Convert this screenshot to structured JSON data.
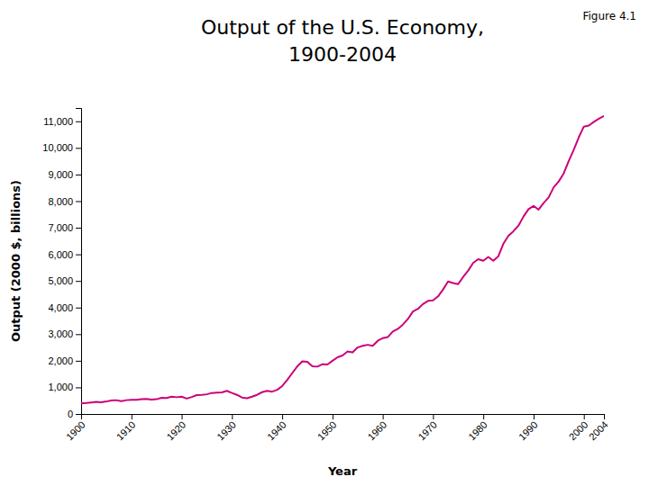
{
  "chart_data": {
    "type": "line",
    "title": "Output of the U.S. Economy,",
    "subtitle": "1900-2004",
    "annotations": [
      "Figure 4.1"
    ],
    "x_label": "Year",
    "y_label": "Output (2000 $, billions)",
    "color": "#CC007A",
    "grid": false,
    "x": [
      1900,
      1901,
      1902,
      1903,
      1904,
      1905,
      1906,
      1907,
      1908,
      1909,
      1910,
      1911,
      1912,
      1913,
      1914,
      1915,
      1916,
      1917,
      1918,
      1919,
      1920,
      1921,
      1922,
      1923,
      1924,
      1925,
      1926,
      1927,
      1928,
      1929,
      1930,
      1931,
      1932,
      1933,
      1934,
      1935,
      1936,
      1937,
      1938,
      1939,
      1940,
      1941,
      1942,
      1943,
      1944,
      1945,
      1946,
      1947,
      1948,
      1949,
      1950,
      1951,
      1952,
      1953,
      1954,
      1955,
      1956,
      1957,
      1958,
      1959,
      1960,
      1961,
      1962,
      1963,
      1964,
      1965,
      1966,
      1967,
      1968,
      1969,
      1970,
      1971,
      1972,
      1973,
      1974,
      1975,
      1976,
      1977,
      1978,
      1979,
      1980,
      1981,
      1982,
      1983,
      1984,
      1985,
      1986,
      1987,
      1988,
      1989,
      1990,
      1991,
      1992,
      1993,
      1994,
      1995,
      1996,
      1997,
      1998,
      1999,
      2000,
      2001,
      2002,
      2003,
      2004
    ],
    "values": [
      400,
      415,
      435,
      455,
      440,
      470,
      510,
      520,
      480,
      520,
      530,
      535,
      555,
      570,
      540,
      555,
      610,
      600,
      650,
      630,
      650,
      580,
      640,
      710,
      720,
      740,
      790,
      800,
      810,
      870,
      790,
      720,
      620,
      590,
      650,
      720,
      820,
      870,
      840,
      910,
      1050,
      1280,
      1540,
      1790,
      1980,
      1960,
      1790,
      1780,
      1870,
      1860,
      2000,
      2130,
      2200,
      2350,
      2320,
      2500,
      2560,
      2600,
      2560,
      2750,
      2850,
      2890,
      3100,
      3200,
      3360,
      3570,
      3850,
      3950,
      4130,
      4250,
      4270,
      4420,
      4680,
      4980,
      4920,
      4880,
      5150,
      5390,
      5680,
      5820,
      5760,
      5900,
      5760,
      5930,
      6400,
      6700,
      6870,
      7080,
      7420,
      7700,
      7820,
      7680,
      7930,
      8140,
      8520,
      8740,
      9040,
      9510,
      9930,
      10400,
      10800,
      10840,
      10980,
      11100,
      11200
    ],
    "xlim": [
      1900,
      2004
    ],
    "xticks": [
      1900,
      1910,
      1920,
      1930,
      1940,
      1950,
      1960,
      1970,
      1980,
      1990,
      2000,
      2004
    ],
    "ylim": [
      0,
      11500
    ],
    "yticks": [
      0,
      {
        "value": 1000,
        "label": "1,000"
      },
      {
        "value": 2000,
        "label": "2,000"
      },
      {
        "value": 3000,
        "label": "3,000"
      },
      {
        "value": 4000,
        "label": "4,000"
      },
      {
        "value": 5000,
        "label": "5,000"
      },
      {
        "value": 6000,
        "label": "6,000"
      },
      {
        "value": 7000,
        "label": "7,000"
      },
      {
        "value": 8000,
        "label": "8,000"
      },
      {
        "value": 9000,
        "label": "9,000"
      },
      {
        "value": 10000,
        "label": "10,000"
      },
      {
        "value": 11000,
        "label": "11,000"
      }
    ]
  }
}
